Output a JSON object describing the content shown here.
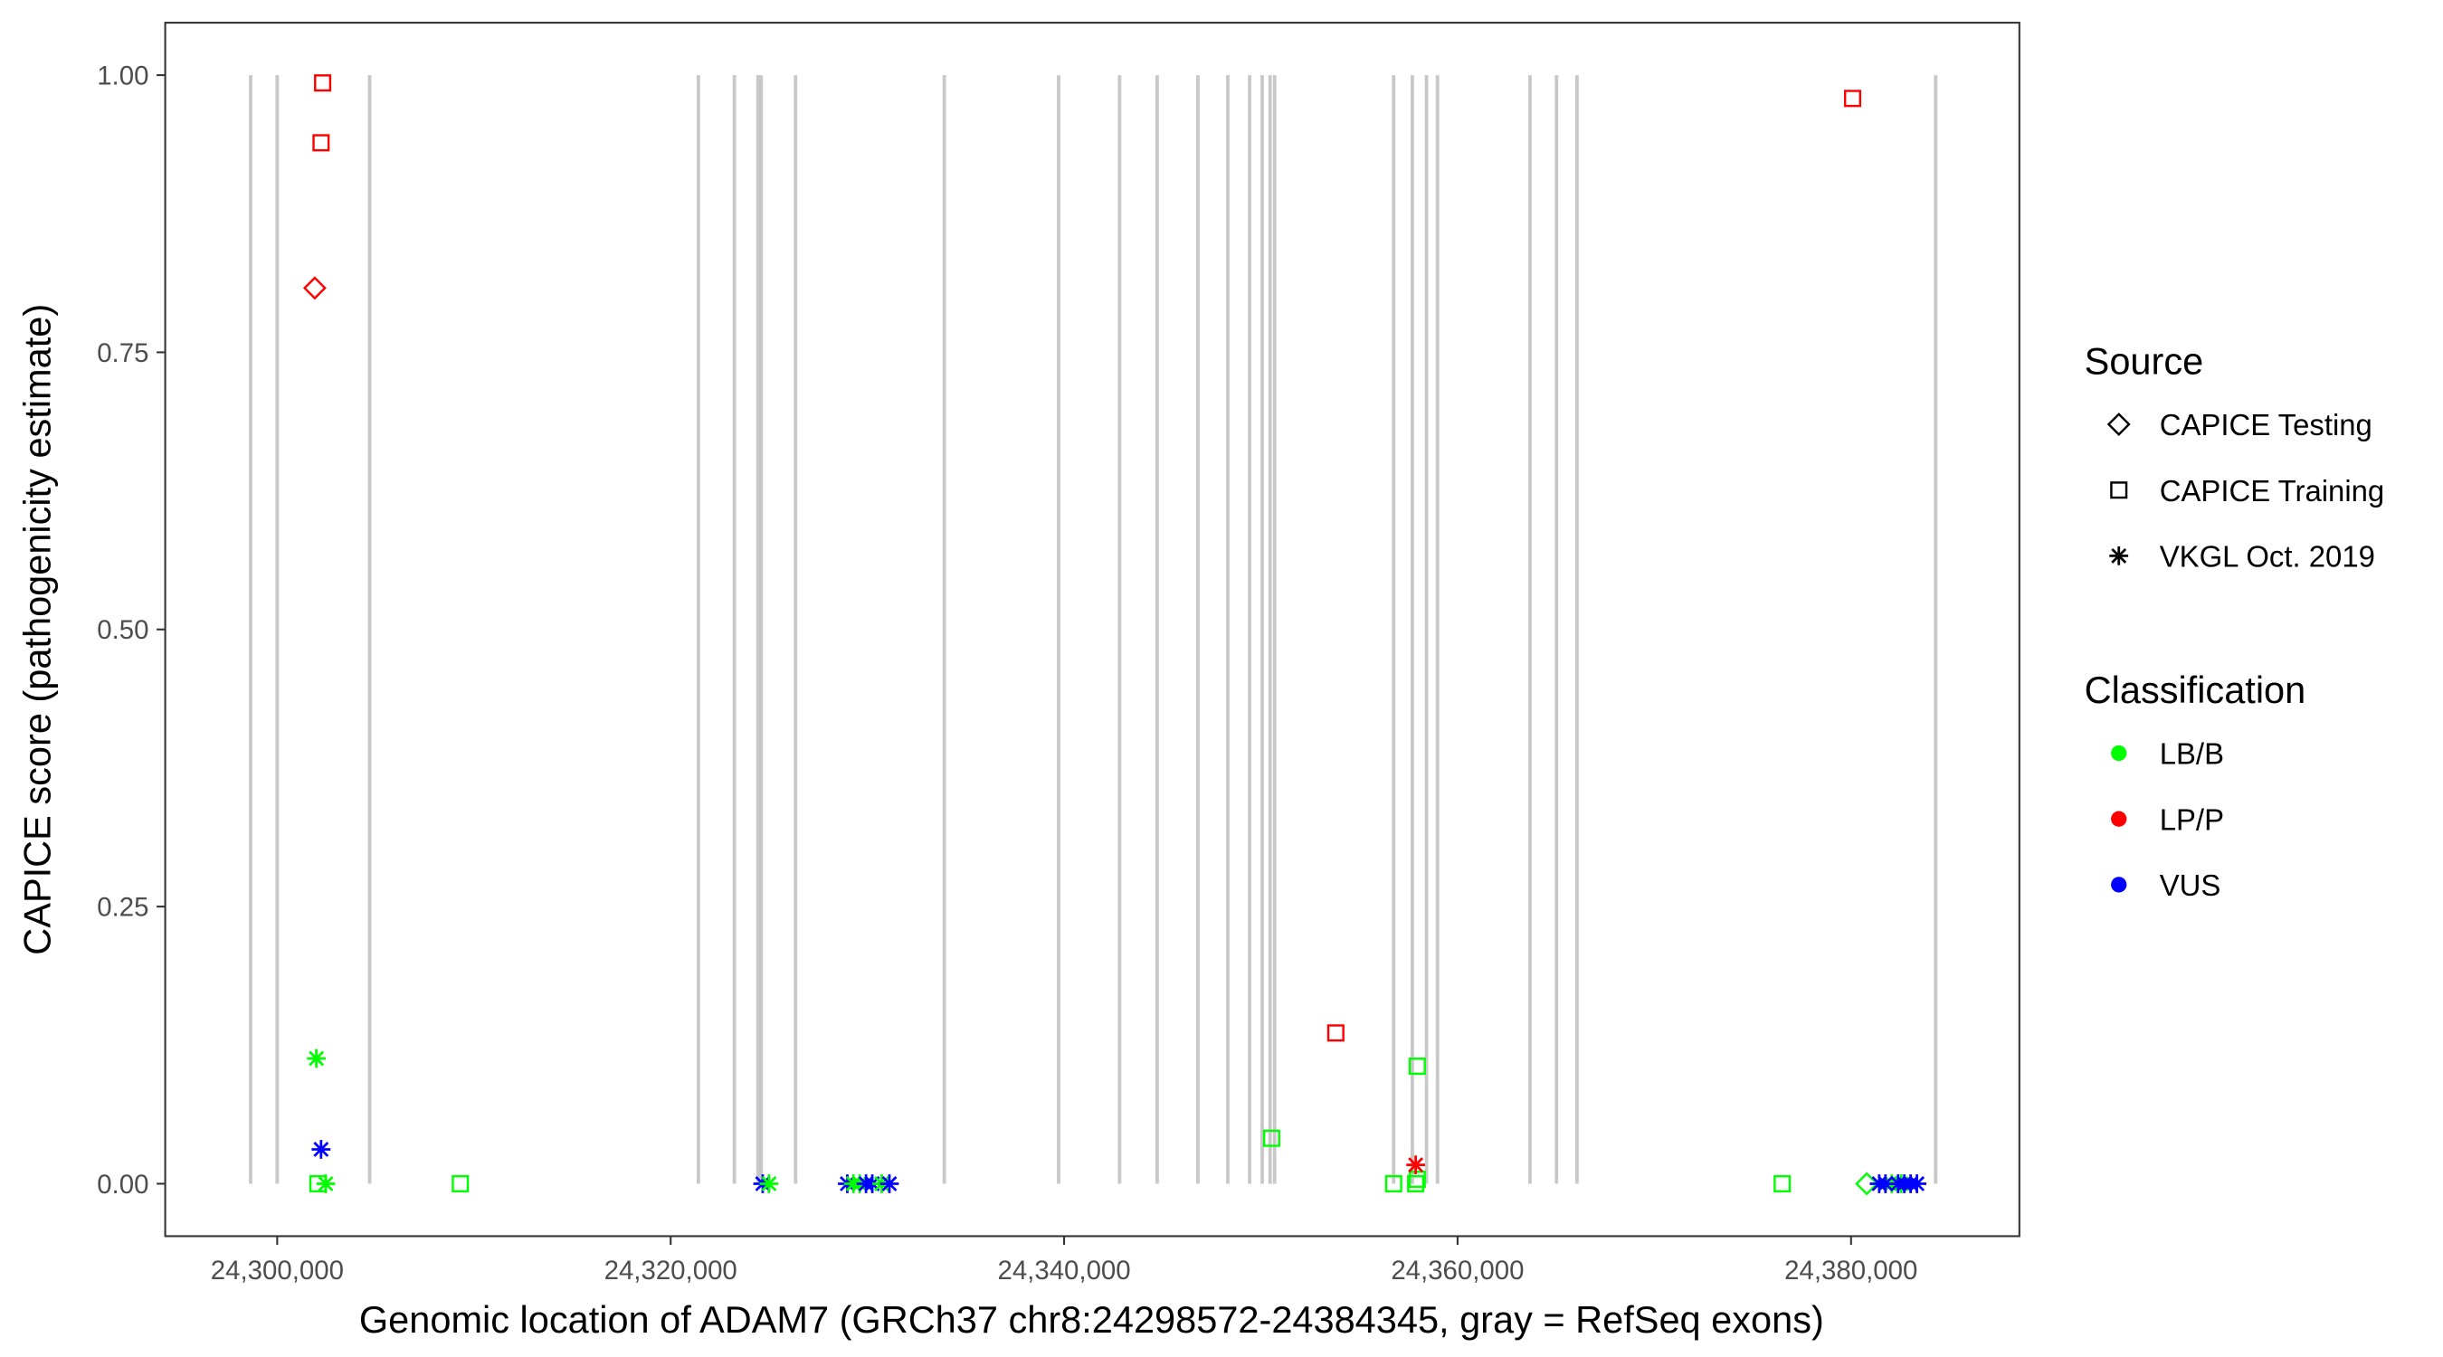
{
  "chart_data": {
    "type": "scatter",
    "title": "",
    "xlabel": "Genomic location of ADAM7 (GRCh37 chr8:24298572-24384345, gray = RefSeq exons)",
    "ylabel": "CAPICE score (pathogenicity estimate)",
    "xlim": [
      24297400,
      24388300
    ],
    "ylim": [
      -0.046,
      1.048
    ],
    "x_ticks": [
      24300000,
      24320000,
      24340000,
      24360000,
      24380000
    ],
    "x_tick_labels": [
      "24,300,000",
      "24,320,000",
      "24,340,000",
      "24,360,000",
      "24,380,000"
    ],
    "y_ticks": [
      0,
      0.25,
      0.5,
      0.75,
      1.0
    ],
    "y_tick_labels": [
      "0.00",
      "0.25",
      "0.50",
      "0.75",
      "1.00"
    ],
    "grid": false,
    "legend_placement": "right",
    "exon_color": "#c8c8c8",
    "exons": [
      24298650,
      24300000,
      24304700,
      24321410,
      24323240,
      24324440,
      24324600,
      24326350,
      24333910,
      24339720,
      24342820,
      24344730,
      24346800,
      24348320,
      24349430,
      24350070,
      24350470,
      24350700,
      24356750,
      24357700,
      24358420,
      24358980,
      24363680,
      24365030,
      24366070,
      24384300
    ],
    "legends": {
      "source": {
        "title": "Source",
        "entries": [
          {
            "label": "CAPICE Testing",
            "shape": "diamond"
          },
          {
            "label": "CAPICE Training",
            "shape": "square"
          },
          {
            "label": "VKGL Oct. 2019",
            "shape": "asterisk"
          }
        ]
      },
      "classification": {
        "title": "Classification",
        "entries": [
          {
            "label": "LB/B",
            "color": "#00ff00"
          },
          {
            "label": "LP/P",
            "color": "#ff0000"
          },
          {
            "label": "VUS",
            "color": "#0000ff"
          }
        ]
      }
    },
    "points": [
      {
        "x": 24302310,
        "y": 0.993,
        "source": "CAPICE Training",
        "class": "LP/P"
      },
      {
        "x": 24302230,
        "y": 0.939,
        "source": "CAPICE Training",
        "class": "LP/P"
      },
      {
        "x": 24380080,
        "y": 0.979,
        "source": "CAPICE Training",
        "class": "LP/P"
      },
      {
        "x": 24353810,
        "y": 0.136,
        "source": "CAPICE Training",
        "class": "LP/P"
      },
      {
        "x": 24301910,
        "y": 0.808,
        "source": "CAPICE Testing",
        "class": "LP/P"
      },
      {
        "x": 24301990,
        "y": 0.113,
        "source": "VKGL Oct. 2019",
        "class": "LB/B"
      },
      {
        "x": 24302230,
        "y": 0.031,
        "source": "VKGL Oct. 2019",
        "class": "VUS"
      },
      {
        "x": 24302070,
        "y": 0.0,
        "source": "CAPICE Training",
        "class": "LB/B"
      },
      {
        "x": 24302470,
        "y": 0.0,
        "source": "VKGL Oct. 2019",
        "class": "LB/B"
      },
      {
        "x": 24309310,
        "y": 0.0,
        "source": "CAPICE Training",
        "class": "LB/B"
      },
      {
        "x": 24324680,
        "y": 0.0,
        "source": "VKGL Oct. 2019",
        "class": "VUS"
      },
      {
        "x": 24325000,
        "y": 0.0,
        "source": "VKGL Oct. 2019",
        "class": "LB/B"
      },
      {
        "x": 24328980,
        "y": 0.0,
        "source": "VKGL Oct. 2019",
        "class": "VUS"
      },
      {
        "x": 24329290,
        "y": 0.0,
        "source": "VKGL Oct. 2019",
        "class": "LB/B"
      },
      {
        "x": 24329610,
        "y": 0.0,
        "source": "VKGL Oct. 2019",
        "class": "LB/B"
      },
      {
        "x": 24329930,
        "y": 0.0,
        "source": "VKGL Oct. 2019",
        "class": "VUS"
      },
      {
        "x": 24330250,
        "y": 0.0,
        "source": "VKGL Oct. 2019",
        "class": "VUS"
      },
      {
        "x": 24330730,
        "y": 0.0,
        "source": "VKGL Oct. 2019",
        "class": "LB/B"
      },
      {
        "x": 24331120,
        "y": 0.0,
        "source": "VKGL Oct. 2019",
        "class": "VUS"
      },
      {
        "x": 24350550,
        "y": 0.041,
        "source": "CAPICE Training",
        "class": "LB/B"
      },
      {
        "x": 24356750,
        "y": 0.0,
        "source": "CAPICE Training",
        "class": "LB/B"
      },
      {
        "x": 24357870,
        "y": 0.0,
        "source": "CAPICE Training",
        "class": "LB/B"
      },
      {
        "x": 24357950,
        "y": 0.004,
        "source": "CAPICE Training",
        "class": "LB/B"
      },
      {
        "x": 24357950,
        "y": 0.106,
        "source": "CAPICE Training",
        "class": "LB/B"
      },
      {
        "x": 24357870,
        "y": 0.017,
        "source": "VKGL Oct. 2019",
        "class": "LP/P"
      },
      {
        "x": 24376500,
        "y": 0.0,
        "source": "CAPICE Training",
        "class": "LB/B"
      },
      {
        "x": 24380800,
        "y": 0.0,
        "source": "CAPICE Testing",
        "class": "LB/B"
      },
      {
        "x": 24382070,
        "y": 0.0,
        "source": "VKGL Oct. 2019",
        "class": "LB/B"
      },
      {
        "x": 24382550,
        "y": 0.0,
        "source": "VKGL Oct. 2019",
        "class": "LB/B"
      },
      {
        "x": 24381430,
        "y": 0.0,
        "source": "VKGL Oct. 2019",
        "class": "VUS"
      },
      {
        "x": 24381750,
        "y": 0.0,
        "source": "VKGL Oct. 2019",
        "class": "VUS"
      },
      {
        "x": 24382390,
        "y": 0.0,
        "source": "VKGL Oct. 2019",
        "class": "VUS"
      },
      {
        "x": 24382710,
        "y": 0.0,
        "source": "VKGL Oct. 2019",
        "class": "VUS"
      },
      {
        "x": 24383030,
        "y": 0.0,
        "source": "VKGL Oct. 2019",
        "class": "VUS"
      },
      {
        "x": 24383350,
        "y": 0.0,
        "source": "VKGL Oct. 2019",
        "class": "VUS"
      }
    ]
  }
}
